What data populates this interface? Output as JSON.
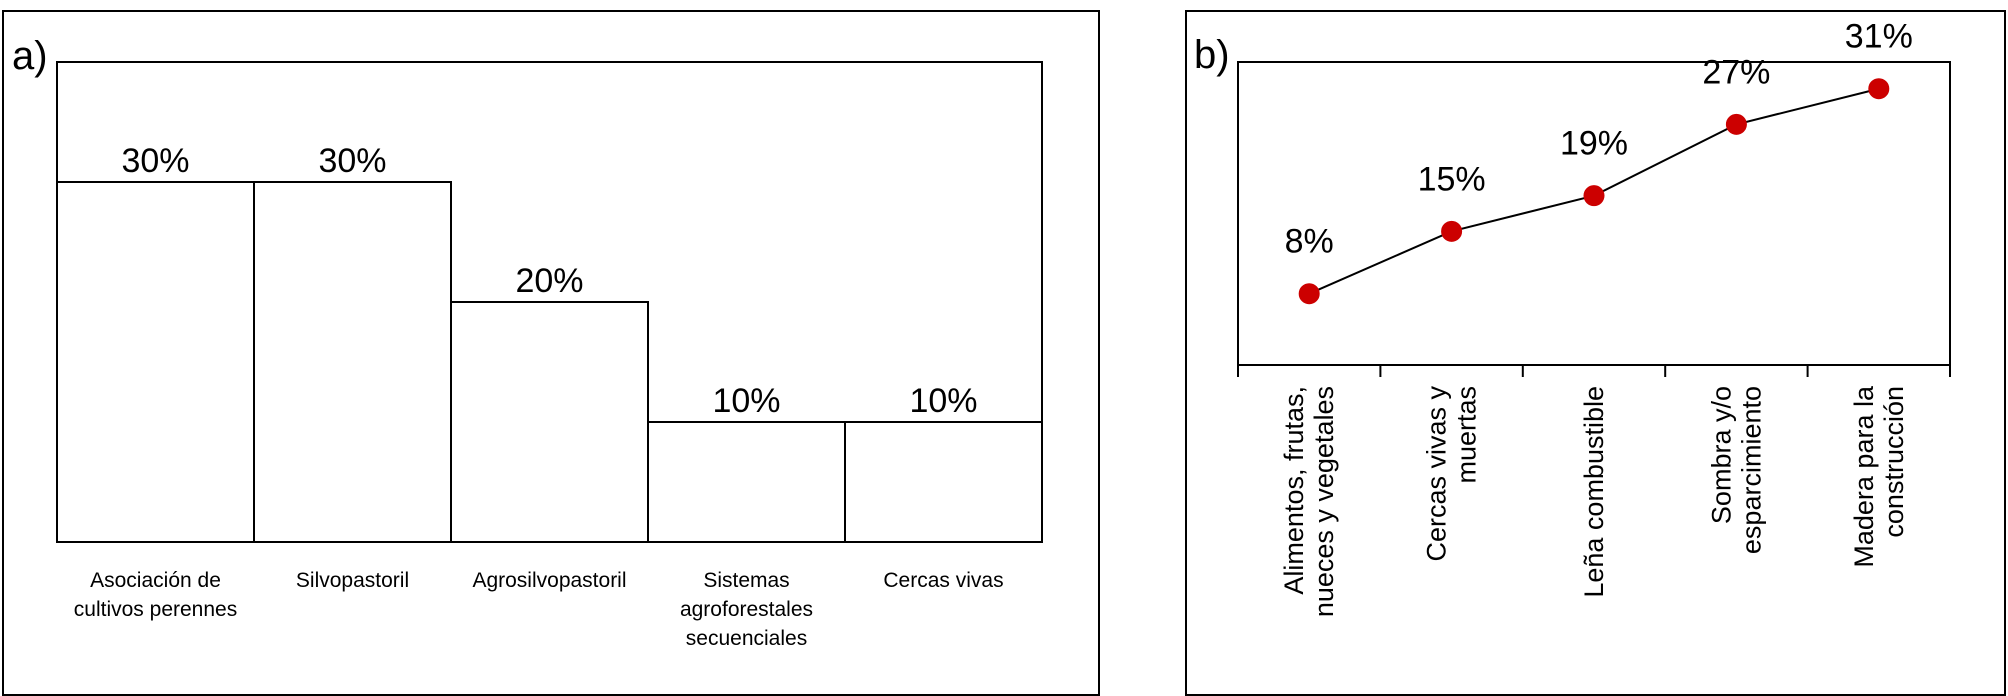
{
  "panels": {
    "a": {
      "label": "a)"
    },
    "b": {
      "label": "b)"
    }
  },
  "chart_data": [
    {
      "id": "a",
      "type": "bar",
      "categories": [
        [
          "Asociación de",
          "cultivos perennes"
        ],
        [
          "Silvopastoril"
        ],
        [
          "Agrosilvopastoril"
        ],
        [
          "Sistemas",
          "agroforestales",
          "secuenciales"
        ],
        [
          "Cercas vivas"
        ]
      ],
      "values": [
        30,
        30,
        20,
        10,
        10
      ],
      "data_labels": [
        "30%",
        "30%",
        "20%",
        "10%",
        "10%"
      ],
      "ylim": [
        0,
        40
      ],
      "bar_color": "#ffffff",
      "edge_color": "#000000",
      "grid": false,
      "title": "",
      "xlabel": "",
      "ylabel": ""
    },
    {
      "id": "b",
      "type": "line",
      "categories": [
        [
          "Alimentos, frutas,",
          "nueces y vegetales"
        ],
        [
          "Cercas vivas y",
          "muertas"
        ],
        [
          "Leña combustible"
        ],
        [
          "Sombra y/o",
          "esparcimiento"
        ],
        [
          "Madera para la",
          "construcción"
        ]
      ],
      "values": [
        8,
        15,
        19,
        27,
        31
      ],
      "data_labels": [
        "8%",
        "15%",
        "19%",
        "27%",
        "31%"
      ],
      "ylim": [
        0,
        34
      ],
      "marker_color": "#cc0000",
      "line_color": "#000000",
      "grid": false,
      "title": "",
      "xlabel": "",
      "ylabel": ""
    }
  ]
}
